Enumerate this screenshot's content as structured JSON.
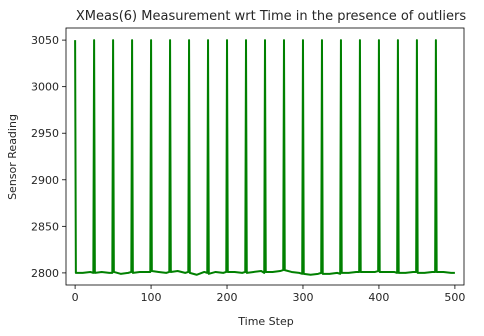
{
  "chart_data": {
    "type": "line",
    "title": "XMeas(6) Measurement wrt Time in the presence of outliers",
    "xlabel": "Time Step",
    "ylabel": "Sensor Reading",
    "xlim": [
      -12,
      512
    ],
    "ylim": [
      2787,
      3063
    ],
    "xticks": [
      0,
      100,
      200,
      300,
      400,
      500
    ],
    "xtick_labels": [
      "0",
      "100",
      "200",
      "300",
      "400",
      "500"
    ],
    "yticks": [
      2800,
      2850,
      2900,
      2950,
      3000,
      3050
    ],
    "ytick_labels": [
      "2800",
      "2850",
      "2900",
      "2950",
      "3000",
      "3050"
    ],
    "grid": false,
    "legend": "none",
    "series": [
      {
        "color": "#008000",
        "x": [
          0,
          1,
          10,
          20,
          24,
          25,
          26,
          35,
          45,
          49,
          50,
          51,
          60,
          70,
          74,
          75,
          76,
          85,
          95,
          99,
          100,
          101,
          110,
          120,
          124,
          125,
          126,
          135,
          145,
          149,
          150,
          151,
          160,
          170,
          174,
          175,
          176,
          185,
          195,
          199,
          200,
          201,
          210,
          220,
          224,
          225,
          226,
          235,
          245,
          249,
          250,
          251,
          260,
          270,
          274,
          275,
          276,
          285,
          295,
          299,
          300,
          301,
          310,
          320,
          324,
          325,
          326,
          335,
          345,
          349,
          350,
          351,
          360,
          370,
          374,
          375,
          376,
          385,
          395,
          399,
          400,
          401,
          410,
          420,
          424,
          425,
          426,
          435,
          445,
          449,
          450,
          451,
          460,
          470,
          474,
          475,
          476,
          485,
          495,
          500
        ],
        "y": [
          3050,
          2800,
          2800,
          2801,
          2800,
          3050,
          2800,
          2801,
          2800,
          2800,
          3050,
          2801,
          2799,
          2800,
          2801,
          3050,
          2800,
          2801,
          2801,
          2801,
          3050,
          2802,
          2801,
          2800,
          2801,
          3050,
          2801,
          2802,
          2800,
          2801,
          3050,
          2800,
          2798,
          2801,
          2800,
          3050,
          2799,
          2801,
          2800,
          2801,
          3050,
          2801,
          2801,
          2800,
          2801,
          3050,
          2800,
          2801,
          2802,
          2800,
          3050,
          2801,
          2801,
          2802,
          2803,
          3050,
          2803,
          2801,
          2800,
          2799,
          3050,
          2799,
          2798,
          2799,
          2800,
          3050,
          2799,
          2799,
          2800,
          2799,
          3050,
          2800,
          2800,
          2801,
          2801,
          3050,
          2801,
          2801,
          2801,
          2802,
          3050,
          2801,
          2801,
          2801,
          2800,
          3050,
          2800,
          2800,
          2801,
          2801,
          3050,
          2800,
          2800,
          2801,
          2801,
          3050,
          2801,
          2801,
          2800,
          2800
        ]
      }
    ]
  }
}
